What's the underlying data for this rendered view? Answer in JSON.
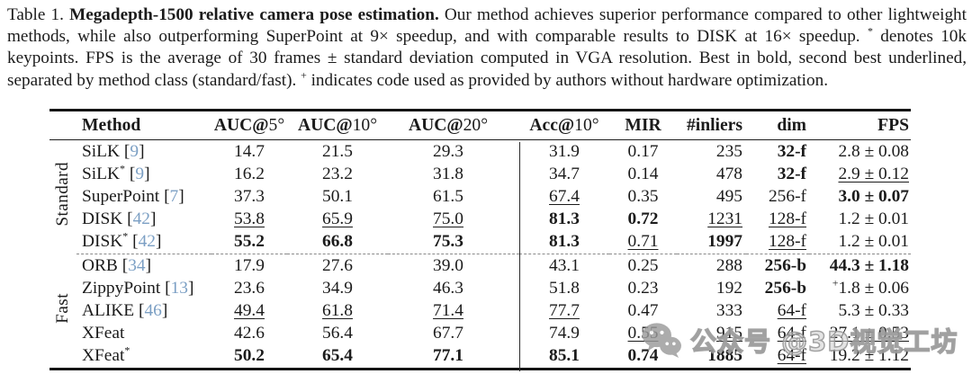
{
  "caption": {
    "lines": [
      [
        {
          "t": "Table 1.  "
        },
        {
          "t": "Megadepth-1500 relative camera pose estimation.",
          "b": true
        },
        {
          "t": " Our method achieves superior performance compared to other lightweight"
        }
      ],
      [
        {
          "t": "methods, while also outperforming SuperPoint at 9× speedup, and with comparable results to DISK at 16× speedup.  "
        },
        {
          "t": "*",
          "sup": true
        },
        {
          "t": " denotes 10k"
        }
      ],
      [
        {
          "t": "keypoints.  FPS is the average of 30 frames ± standard deviation computed in VGA resolution.  Best in bold, second best underlined,"
        }
      ],
      [
        {
          "t": "separated by method class (standard/fast). "
        },
        {
          "t": "+",
          "sup": true
        },
        {
          "t": " indicates code used as provided by authors without hardware optimization."
        }
      ]
    ]
  },
  "table": {
    "headers": [
      {
        "bold": "Method"
      },
      {
        "bold": "AUC@",
        "normal": "5°"
      },
      {
        "bold": "AUC@",
        "normal": "10°"
      },
      {
        "bold": "AUC@",
        "normal": "20°"
      },
      {
        "bold": "Acc@",
        "normal": "10°"
      },
      {
        "bold": "MIR"
      },
      {
        "bold": "#inliers"
      },
      {
        "bold": "dim"
      },
      {
        "bold": "FPS"
      }
    ],
    "col_keys": [
      "auc5",
      "auc10",
      "auc20",
      "acc10",
      "mir",
      "inliers",
      "dim",
      "fps"
    ],
    "groups": [
      {
        "label": "Standard",
        "rows": [
          {
            "method": "SiLK",
            "cite": "9",
            "cells": [
              {
                "v": "14.7"
              },
              {
                "v": "21.5"
              },
              {
                "v": "29.3"
              },
              {
                "v": "31.9"
              },
              {
                "v": "0.17"
              },
              {
                "v": "235"
              },
              {
                "v": "32-f",
                "s": "b"
              },
              {
                "v": "2.8 ± 0.08"
              }
            ]
          },
          {
            "method": "SiLK",
            "sup": "*",
            "cite": "9",
            "cells": [
              {
                "v": "16.2"
              },
              {
                "v": "23.2"
              },
              {
                "v": "31.8"
              },
              {
                "v": "34.7"
              },
              {
                "v": "0.14"
              },
              {
                "v": "478"
              },
              {
                "v": "32-f",
                "s": "b"
              },
              {
                "v": "2.9 ± 0.12",
                "s": "u"
              }
            ]
          },
          {
            "method": "SuperPoint",
            "cite": "7",
            "cells": [
              {
                "v": "37.3"
              },
              {
                "v": "50.1"
              },
              {
                "v": "61.5"
              },
              {
                "v": "67.4",
                "s": "u"
              },
              {
                "v": "0.35"
              },
              {
                "v": "495"
              },
              {
                "v": "256-f"
              },
              {
                "v": "3.0 ± 0.07",
                "s": "b"
              }
            ]
          },
          {
            "method": "DISK",
            "cite": "42",
            "cells": [
              {
                "v": "53.8",
                "s": "u"
              },
              {
                "v": "65.9",
                "s": "u"
              },
              {
                "v": "75.0",
                "s": "u"
              },
              {
                "v": "81.3",
                "s": "b"
              },
              {
                "v": "0.72",
                "s": "b"
              },
              {
                "v": "1231",
                "s": "u"
              },
              {
                "v": "128-f",
                "s": "u"
              },
              {
                "v": "1.2 ± 0.01"
              }
            ]
          },
          {
            "method": "DISK",
            "sup": "*",
            "cite": "42",
            "cells": [
              {
                "v": "55.2",
                "s": "b"
              },
              {
                "v": "66.8",
                "s": "b"
              },
              {
                "v": "75.3",
                "s": "b"
              },
              {
                "v": "81.3",
                "s": "b"
              },
              {
                "v": "0.71",
                "s": "u"
              },
              {
                "v": "1997",
                "s": "b"
              },
              {
                "v": "128-f",
                "s": "u"
              },
              {
                "v": "1.2 ± 0.01"
              }
            ]
          }
        ]
      },
      {
        "label": "Fast",
        "rows": [
          {
            "method": "ORB",
            "cite": "34",
            "cells": [
              {
                "v": "17.9"
              },
              {
                "v": "27.6"
              },
              {
                "v": "39.0"
              },
              {
                "v": "43.1"
              },
              {
                "v": "0.25"
              },
              {
                "v": "288"
              },
              {
                "v": "256-b",
                "s": "b"
              },
              {
                "v": "44.3 ± 1.18",
                "s": "b"
              }
            ]
          },
          {
            "method": "ZippyPoint",
            "cite": "13",
            "cells": [
              {
                "v": "23.6"
              },
              {
                "v": "34.9"
              },
              {
                "v": "46.3"
              },
              {
                "v": "51.8"
              },
              {
                "v": "0.23"
              },
              {
                "v": "192"
              },
              {
                "v": "256-b",
                "s": "b"
              },
              {
                "v": "1.8 ± 0.06",
                "sup": "+"
              }
            ]
          },
          {
            "method": "ALIKE",
            "cite": "46",
            "cells": [
              {
                "v": "49.4",
                "s": "u"
              },
              {
                "v": "61.8",
                "s": "u"
              },
              {
                "v": "71.4",
                "s": "u"
              },
              {
                "v": "77.7",
                "s": "u"
              },
              {
                "v": "0.47"
              },
              {
                "v": "333"
              },
              {
                "v": "64-f",
                "s": "u"
              },
              {
                "v": "5.3 ± 0.33"
              }
            ]
          },
          {
            "method": "XFeat",
            "cells": [
              {
                "v": "42.6"
              },
              {
                "v": "56.4"
              },
              {
                "v": "67.7"
              },
              {
                "v": "74.9"
              },
              {
                "v": "0.55",
                "s": "u"
              },
              {
                "v": "915",
                "s": "u"
              },
              {
                "v": "64-f",
                "s": "u"
              },
              {
                "v": "27.1 ± 0.53",
                "s": "u"
              }
            ]
          },
          {
            "method": "XFeat",
            "sup": "*",
            "cells": [
              {
                "v": "50.2",
                "s": "b"
              },
              {
                "v": "65.4",
                "s": "b"
              },
              {
                "v": "77.1",
                "s": "b"
              },
              {
                "v": "85.1",
                "s": "b"
              },
              {
                "v": "0.74",
                "s": "b"
              },
              {
                "v": "1885",
                "s": "b"
              },
              {
                "v": "64-f",
                "s": "u"
              },
              {
                "v": "19.2 ± 1.12"
              }
            ]
          }
        ]
      }
    ]
  },
  "watermark": {
    "icon": "wechat-icon",
    "text": "公众号 @3D视觉工坊"
  },
  "colors": {
    "citation": "#7b9fc4",
    "watermark_gray": "#9a9a9a",
    "rule_black": "#141414",
    "dashed_gray": "#8a8a8a"
  }
}
